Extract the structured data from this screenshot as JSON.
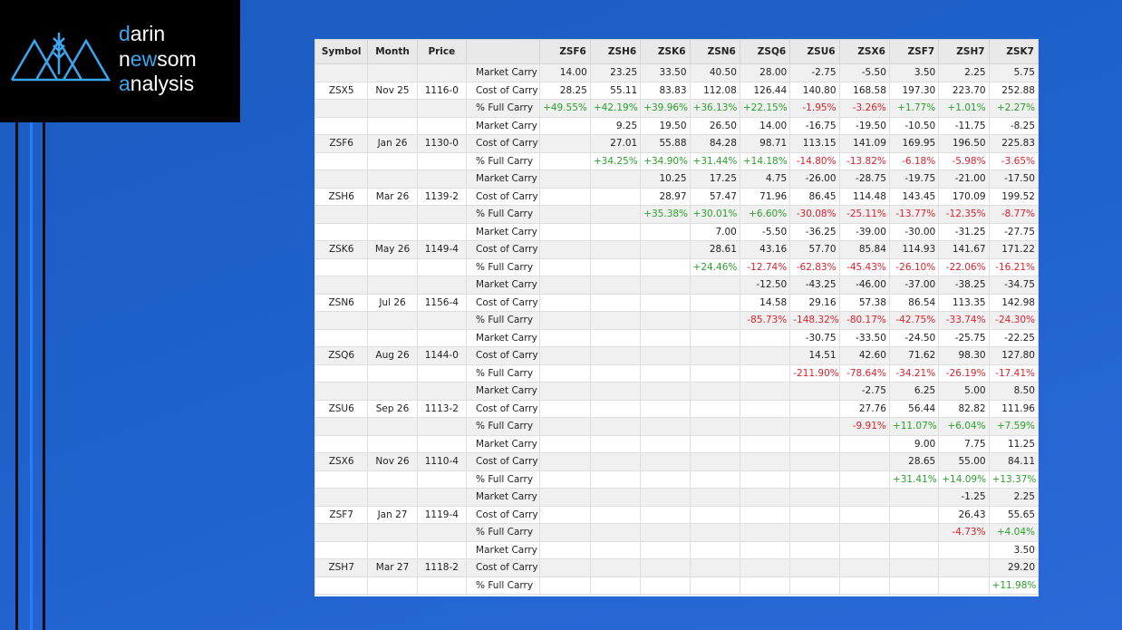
{
  "logo": {
    "lines": [
      [
        "d",
        "arin"
      ],
      [
        "n",
        "ew",
        "som"
      ],
      [
        "a",
        "nalysis"
      ]
    ]
  },
  "table": {
    "header": [
      "Symbol",
      "Month",
      "Price",
      null,
      "ZSF6",
      "ZSH6",
      "ZSK6",
      "ZSN6",
      "ZSQ6",
      "ZSU6",
      "ZSX6",
      "ZSF7",
      "ZSH7",
      "ZSK7"
    ],
    "rows": [
      [
        null,
        null,
        null,
        "Market Carry",
        "14.00",
        "23.25",
        "33.50",
        "40.50",
        "28.00",
        "-2.75",
        "-5.50",
        "3.50",
        "2.25",
        "5.75"
      ],
      [
        "ZSX5",
        "Nov 25",
        "1116-0",
        "Cost of Carry",
        "28.25",
        "55.11",
        "83.83",
        "112.08",
        "126.44",
        "140.80",
        "168.58",
        "197.30",
        "223.70",
        "252.88"
      ],
      [
        null,
        null,
        null,
        "% Full Carry",
        "+49.55%",
        "+42.19%",
        "+39.96%",
        "+36.13%",
        "+22.15%",
        "-1.95%",
        "-3.26%",
        "+1.77%",
        "+1.01%",
        "+2.27%"
      ],
      [
        null,
        null,
        null,
        "Market Carry",
        null,
        "9.25",
        "19.50",
        "26.50",
        "14.00",
        "-16.75",
        "-19.50",
        "-10.50",
        "-11.75",
        "-8.25"
      ],
      [
        "ZSF6",
        "Jan 26",
        "1130-0",
        "Cost of Carry",
        null,
        "27.01",
        "55.88",
        "84.28",
        "98.71",
        "113.15",
        "141.09",
        "169.95",
        "196.50",
        "225.83"
      ],
      [
        null,
        null,
        null,
        "% Full Carry",
        null,
        "+34.25%",
        "+34.90%",
        "+31.44%",
        "+14.18%",
        "-14.80%",
        "-13.82%",
        "-6.18%",
        "-5.98%",
        "-3.65%"
      ],
      [
        null,
        null,
        null,
        "Market Carry",
        null,
        null,
        "10.25",
        "17.25",
        "4.75",
        "-26.00",
        "-28.75",
        "-19.75",
        "-21.00",
        "-17.50"
      ],
      [
        "ZSH6",
        "Mar 26",
        "1139-2",
        "Cost of Carry",
        null,
        null,
        "28.97",
        "57.47",
        "71.96",
        "86.45",
        "114.48",
        "143.45",
        "170.09",
        "199.52"
      ],
      [
        null,
        null,
        null,
        "% Full Carry",
        null,
        null,
        "+35.38%",
        "+30.01%",
        "+6.60%",
        "-30.08%",
        "-25.11%",
        "-13.77%",
        "-12.35%",
        "-8.77%"
      ],
      [
        null,
        null,
        null,
        "Market Carry",
        null,
        null,
        null,
        "7.00",
        "-5.50",
        "-36.25",
        "-39.00",
        "-30.00",
        "-31.25",
        "-27.75"
      ],
      [
        "ZSK6",
        "May 26",
        "1149-4",
        "Cost of Carry",
        null,
        null,
        null,
        "28.61",
        "43.16",
        "57.70",
        "85.84",
        "114.93",
        "141.67",
        "171.22"
      ],
      [
        null,
        null,
        null,
        "% Full Carry",
        null,
        null,
        null,
        "+24.46%",
        "-12.74%",
        "-62.83%",
        "-45.43%",
        "-26.10%",
        "-22.06%",
        "-16.21%"
      ],
      [
        null,
        null,
        null,
        "Market Carry",
        null,
        null,
        null,
        null,
        "-12.50",
        "-43.25",
        "-46.00",
        "-37.00",
        "-38.25",
        "-34.75"
      ],
      [
        "ZSN6",
        "Jul 26",
        "1156-4",
        "Cost of Carry",
        null,
        null,
        null,
        null,
        "14.58",
        "29.16",
        "57.38",
        "86.54",
        "113.35",
        "142.98"
      ],
      [
        null,
        null,
        null,
        "% Full Carry",
        null,
        null,
        null,
        null,
        "-85.73%",
        "-148.32%",
        "-80.17%",
        "-42.75%",
        "-33.74%",
        "-24.30%"
      ],
      [
        null,
        null,
        null,
        "Market Carry",
        null,
        null,
        null,
        null,
        null,
        "-30.75",
        "-33.50",
        "-24.50",
        "-25.75",
        "-22.25"
      ],
      [
        "ZSQ6",
        "Aug 26",
        "1144-0",
        "Cost of Carry",
        null,
        null,
        null,
        null,
        null,
        "14.51",
        "42.60",
        "71.62",
        "98.30",
        "127.80"
      ],
      [
        null,
        null,
        null,
        "% Full Carry",
        null,
        null,
        null,
        null,
        null,
        "-211.90%",
        "-78.64%",
        "-34.21%",
        "-26.19%",
        "-17.41%"
      ],
      [
        null,
        null,
        null,
        "Market Carry",
        null,
        null,
        null,
        null,
        null,
        null,
        "-2.75",
        "6.25",
        "5.00",
        "8.50"
      ],
      [
        "ZSU6",
        "Sep 26",
        "1113-2",
        "Cost of Carry",
        null,
        null,
        null,
        null,
        null,
        null,
        "27.76",
        "56.44",
        "82.82",
        "111.96"
      ],
      [
        null,
        null,
        null,
        "% Full Carry",
        null,
        null,
        null,
        null,
        null,
        null,
        "-9.91%",
        "+11.07%",
        "+6.04%",
        "+7.59%"
      ],
      [
        null,
        null,
        null,
        "Market Carry",
        null,
        null,
        null,
        null,
        null,
        null,
        null,
        "9.00",
        "7.75",
        "11.25"
      ],
      [
        "ZSX6",
        "Nov 26",
        "1110-4",
        "Cost of Carry",
        null,
        null,
        null,
        null,
        null,
        null,
        null,
        "28.65",
        "55.00",
        "84.11"
      ],
      [
        null,
        null,
        null,
        "% Full Carry",
        null,
        null,
        null,
        null,
        null,
        null,
        null,
        "+31.41%",
        "+14.09%",
        "+13.37%"
      ],
      [
        null,
        null,
        null,
        "Market Carry",
        null,
        null,
        null,
        null,
        null,
        null,
        null,
        null,
        "-1.25",
        "2.25"
      ],
      [
        "ZSF7",
        "Jan 27",
        "1119-4",
        "Cost of Carry",
        null,
        null,
        null,
        null,
        null,
        null,
        null,
        null,
        "26.43",
        "55.65"
      ],
      [
        null,
        null,
        null,
        "% Full Carry",
        null,
        null,
        null,
        null,
        null,
        null,
        null,
        null,
        "-4.73%",
        "+4.04%"
      ],
      [
        null,
        null,
        null,
        "Market Carry",
        null,
        null,
        null,
        null,
        null,
        null,
        null,
        null,
        null,
        "3.50"
      ],
      [
        "ZSH7",
        "Mar 27",
        "1118-2",
        "Cost of Carry",
        null,
        null,
        null,
        null,
        null,
        null,
        null,
        null,
        null,
        "29.20"
      ],
      [
        null,
        null,
        null,
        "% Full Carry",
        null,
        null,
        null,
        null,
        null,
        null,
        null,
        null,
        null,
        "+11.98%"
      ]
    ]
  }
}
